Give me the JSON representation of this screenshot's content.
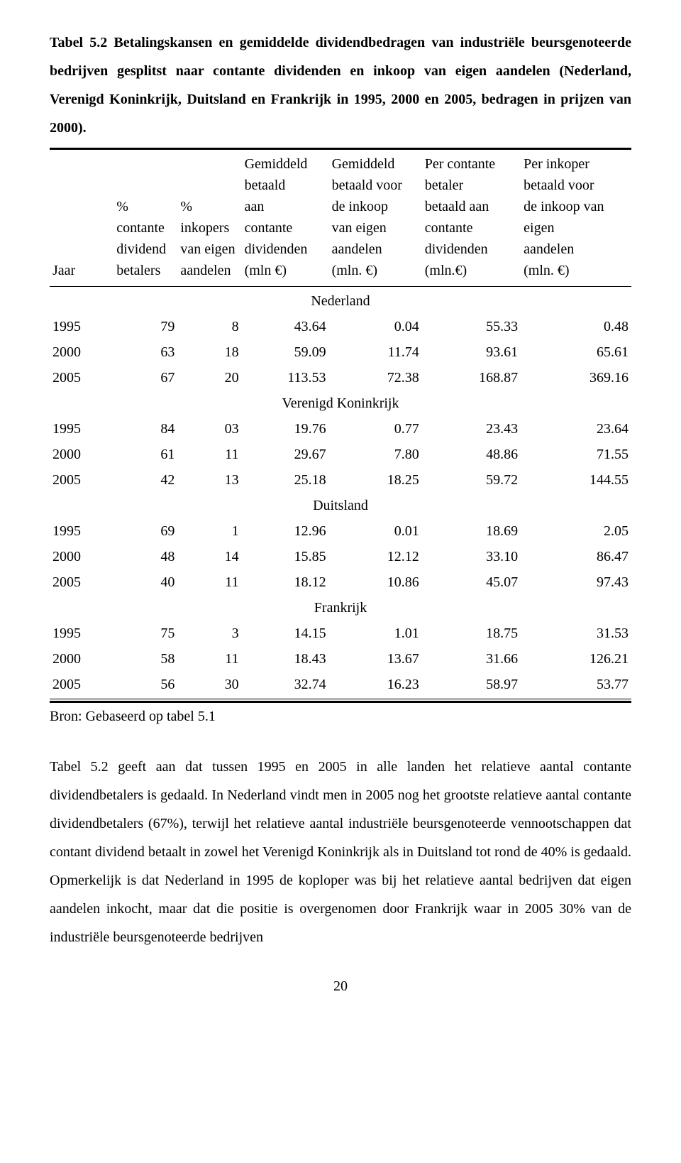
{
  "caption_parts": {
    "label": "Tabel 5.2",
    "rest": " Betalingskansen en gemiddelde dividendbedragen van industriële beursgenoteerde bedrijven gesplitst naar contante dividenden en inkoop van eigen aandelen (Nederland, Verenigd Koninkrijk, Duitsland en Frankrijk in 1995, 2000 en 2005, bedragen in prijzen van 2000)."
  },
  "headers": {
    "c1": "Jaar",
    "c2": "% contante dividend betalers",
    "c3": "% inkopers van eigen aandelen",
    "c4": "Gemiddeld betaald aan contante dividenden (mln €)",
    "c5": "Gemiddeld betaald voor de inkoop van eigen aandelen (mln. €)",
    "c6": "Per contante betaler betaald aan contante dividenden (mln.€)",
    "c7": "Per inkoper betaald voor de inkoop van eigen aandelen (mln. €)"
  },
  "header_lines": {
    "c2": [
      "%",
      "contante",
      "dividend",
      "betalers"
    ],
    "c3": [
      "%",
      "inkopers",
      "van eigen",
      "aandelen"
    ],
    "c4": [
      "Gemiddeld",
      "betaald",
      "aan",
      "contante",
      "dividenden",
      "(mln €)"
    ],
    "c5": [
      "Gemiddeld",
      "betaald voor",
      "de inkoop",
      "van eigen",
      "aandelen",
      "(mln. €)"
    ],
    "c6": [
      "Per contante",
      "betaler",
      "betaald aan",
      "contante",
      "dividenden",
      "(mln.€)"
    ],
    "c7": [
      "Per inkoper",
      "betaald voor",
      "de inkoop van",
      "eigen",
      "aandelen",
      "(mln. €)"
    ]
  },
  "sections": [
    {
      "name": "Nederland",
      "rows": [
        {
          "year": "1995",
          "v": [
            "79",
            "8",
            "43.64",
            "0.04",
            "55.33",
            "0.48"
          ]
        },
        {
          "year": "2000",
          "v": [
            "63",
            "18",
            "59.09",
            "11.74",
            "93.61",
            "65.61"
          ]
        },
        {
          "year": "2005",
          "v": [
            "67",
            "20",
            "113.53",
            "72.38",
            "168.87",
            "369.16"
          ]
        }
      ]
    },
    {
      "name": "Verenigd Koninkrijk",
      "rows": [
        {
          "year": "1995",
          "v": [
            "84",
            "03",
            "19.76",
            "0.77",
            "23.43",
            "23.64"
          ]
        },
        {
          "year": "2000",
          "v": [
            "61",
            "11",
            "29.67",
            "7.80",
            "48.86",
            "71.55"
          ]
        },
        {
          "year": "2005",
          "v": [
            "42",
            "13",
            "25.18",
            "18.25",
            "59.72",
            "144.55"
          ]
        }
      ]
    },
    {
      "name": "Duitsland",
      "rows": [
        {
          "year": "1995",
          "v": [
            "69",
            "1",
            "12.96",
            "0.01",
            "18.69",
            "2.05"
          ]
        },
        {
          "year": "2000",
          "v": [
            "48",
            "14",
            "15.85",
            "12.12",
            "33.10",
            "86.47"
          ]
        },
        {
          "year": "2005",
          "v": [
            "40",
            "11",
            "18.12",
            "10.86",
            "45.07",
            "97.43"
          ]
        }
      ]
    },
    {
      "name": "Frankrijk",
      "rows": [
        {
          "year": "1995",
          "v": [
            "75",
            "3",
            "14.15",
            "1.01",
            "18.75",
            "31.53"
          ]
        },
        {
          "year": "2000",
          "v": [
            "58",
            "11",
            "18.43",
            "13.67",
            "31.66",
            "126.21"
          ]
        },
        {
          "year": "2005",
          "v": [
            "56",
            "30",
            "32.74",
            "16.23",
            "58.97",
            "53.77"
          ]
        }
      ]
    }
  ],
  "source": "Bron: Gebaseerd op tabel 5.1",
  "body": "Tabel 5.2 geeft aan dat tussen 1995 en 2005 in alle landen het relatieve aantal contante dividendbetalers is gedaald. In Nederland vindt men in 2005 nog het grootste relatieve aantal contante dividendbetalers (67%), terwijl het relatieve aantal industriële beursgenoteerde vennootschappen dat contant dividend betaalt in zowel het Verenigd Koninkrijk als in Duitsland tot rond de 40% is gedaald. Opmerkelijk is dat Nederland in 1995 de koploper was bij het relatieve aantal bedrijven dat eigen aandelen inkocht, maar dat die positie is overgenomen door Frankrijk waar in 2005 30% van de industriële beursgenoteerde bedrijven",
  "page_number": "20"
}
